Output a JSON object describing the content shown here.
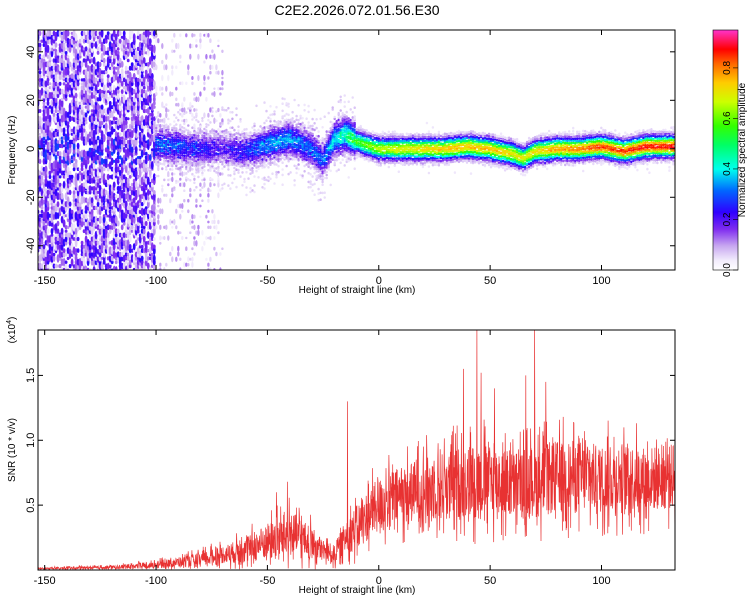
{
  "figure": {
    "title": "C2E2.2026.072.01.56.E30"
  },
  "chart_data": [
    {
      "type": "heatmap",
      "title": "",
      "xlabel": "Height of straight line (km)",
      "ylabel": "Frequency (Hz)",
      "xlim": [
        -153,
        133
      ],
      "ylim": [
        -50,
        49
      ],
      "xticks": [
        -150,
        -100,
        -50,
        0,
        50,
        100
      ],
      "yticks": [
        -40,
        -20,
        0,
        20,
        40
      ],
      "description_of_values": "Normalized spectral amplitude vs height and frequency. Broad noisy low-amplitude spread below -100 km; signal concentrated near 0 Hz above -100 km, increasing in amplitude with height.",
      "ridge": {
        "x": [
          -100,
          -90,
          -80,
          -70,
          -60,
          -50,
          -40,
          -30,
          -25,
          -20,
          -15,
          -10,
          0,
          10,
          20,
          30,
          40,
          50,
          60,
          65,
          70,
          80,
          90,
          100,
          110,
          120,
          133
        ],
        "freq_hz": [
          2,
          1,
          0,
          0,
          -1,
          2,
          4,
          0,
          -5,
          4,
          6,
          3,
          0,
          0,
          0,
          0,
          1,
          0,
          -2,
          -4,
          -1,
          0,
          0,
          1,
          -1,
          1,
          1
        ],
        "amplitude": [
          0.3,
          0.3,
          0.25,
          0.2,
          0.25,
          0.35,
          0.35,
          0.3,
          0.3,
          0.4,
          0.45,
          0.55,
          0.65,
          0.7,
          0.72,
          0.75,
          0.75,
          0.75,
          0.72,
          0.7,
          0.72,
          0.78,
          0.8,
          0.85,
          0.85,
          0.88,
          0.88
        ]
      },
      "colorbar": {
        "label": "Normalized spectral amplitude",
        "range": [
          0,
          0.95
        ],
        "ticks": [
          "0.0",
          "0.2",
          "0.4",
          "0.6",
          "0.8"
        ],
        "tick_values": [
          0.0,
          0.2,
          0.4,
          0.6,
          0.8
        ]
      }
    },
    {
      "type": "line",
      "title": "",
      "xlabel": "Height of straight line (km)",
      "ylabel": "SNR (10 * v/v)",
      "scale_label": "(x10",
      "scale_exponent": "4",
      "scale_close": ")",
      "xlim": [
        -153,
        133
      ],
      "ylim": [
        0,
        1.85
      ],
      "xticks": [
        -150,
        -100,
        -50,
        0,
        50,
        100
      ],
      "yticks": [
        "0.5",
        "1.0",
        "1.5"
      ],
      "ytick_values": [
        0.5,
        1.0,
        1.5
      ],
      "series_color": "#e83232",
      "envelope": {
        "x": [
          -153,
          -120,
          -100,
          -90,
          -80,
          -70,
          -60,
          -50,
          -40,
          -35,
          -30,
          -25,
          -20,
          -15,
          -12,
          -10,
          -5,
          0,
          10,
          20,
          30,
          40,
          45,
          50,
          60,
          70,
          80,
          90,
          100,
          110,
          120,
          133
        ],
        "mean": [
          0.01,
          0.02,
          0.04,
          0.06,
          0.08,
          0.12,
          0.15,
          0.22,
          0.28,
          0.25,
          0.2,
          0.15,
          0.12,
          0.25,
          0.3,
          0.32,
          0.42,
          0.5,
          0.58,
          0.62,
          0.65,
          0.68,
          0.7,
          0.7,
          0.65,
          0.68,
          0.72,
          0.72,
          0.7,
          0.72,
          0.7,
          0.72
        ],
        "spread": [
          0.01,
          0.02,
          0.04,
          0.05,
          0.08,
          0.1,
          0.14,
          0.2,
          0.25,
          0.22,
          0.18,
          0.12,
          0.1,
          0.18,
          0.22,
          0.25,
          0.28,
          0.3,
          0.32,
          0.35,
          0.38,
          0.42,
          0.42,
          0.42,
          0.38,
          0.4,
          0.4,
          0.4,
          0.38,
          0.38,
          0.36,
          0.36
        ]
      },
      "spikes": [
        {
          "x": -46,
          "y": 0.6
        },
        {
          "x": -41,
          "y": 0.68
        },
        {
          "x": -14,
          "y": 1.3
        },
        {
          "x": 38,
          "y": 1.55
        },
        {
          "x": 44,
          "y": 1.85
        },
        {
          "x": 46,
          "y": 1.52
        },
        {
          "x": 52,
          "y": 1.4
        },
        {
          "x": 66,
          "y": 1.5
        },
        {
          "x": 70,
          "y": 1.85
        },
        {
          "x": 75,
          "y": 1.45
        }
      ]
    }
  ]
}
